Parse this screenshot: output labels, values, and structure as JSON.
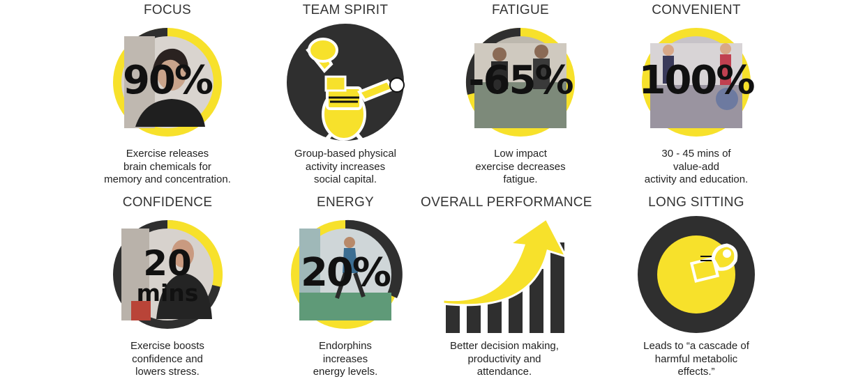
{
  "colors": {
    "accent": "#f7e12b",
    "dark": "#2f2f2f",
    "text": "#222222"
  },
  "tiles": [
    {
      "title": "FOCUS",
      "stat": "90%",
      "desc": [
        "Exercise releases",
        "brain chemicals for",
        "memory and concentration."
      ],
      "level": 0.9
    },
    {
      "title": "TEAM SPIRIT",
      "desc": [
        "Group-based physical",
        "activity increases",
        "social capital."
      ],
      "icon": "team-spirit-mascot-icon"
    },
    {
      "title": "FATIGUE",
      "stat": "-65%",
      "desc": [
        "Low impact",
        "exercise decreases",
        "fatigue."
      ],
      "level": 0.65
    },
    {
      "title": "CONVENIENT",
      "stat": "100%",
      "desc": [
        "30 - 45 mins of",
        "value-add",
        "activity and education."
      ],
      "level": 1.0
    },
    {
      "title": "CONFIDENCE",
      "stat": "20",
      "stat_unit": "mins",
      "desc": [
        "Exercise boosts",
        "confidence and",
        "lowers stress."
      ],
      "level": 0.33
    },
    {
      "title": "ENERGY",
      "stat": "20%",
      "desc": [
        "Endorphins",
        "increases",
        "energy levels."
      ],
      "level": 0.2
    },
    {
      "title": "OVERALL PERFORMANCE",
      "desc": [
        "Better decision making,",
        "productivity and",
        "attendance."
      ],
      "icon": "growth-arrow-bar-chart-icon"
    },
    {
      "title": "LONG SITTING",
      "desc": [
        "Leads to “a cascade of",
        "harmful metabolic",
        "effects.”"
      ],
      "icon": "sitting-mascot-icon"
    }
  ]
}
